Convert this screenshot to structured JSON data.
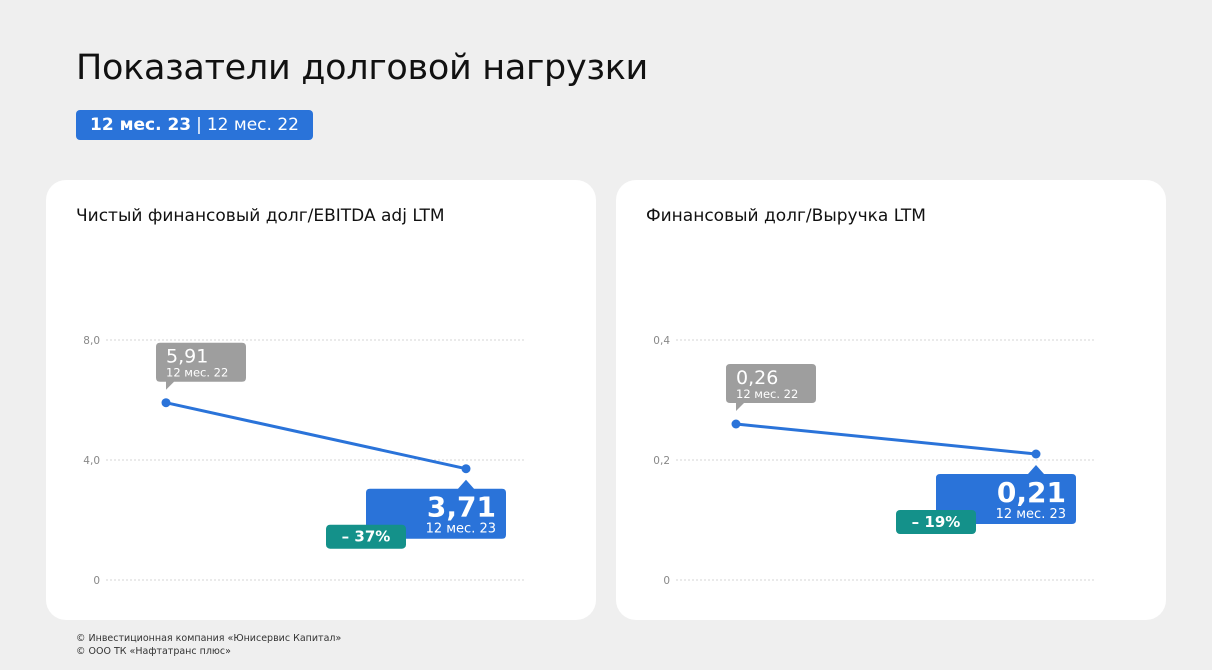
{
  "header": {
    "title": "Показатели долговой нагрузки",
    "period_current": "12 мес. 23",
    "period_separator": "|",
    "period_previous": "12 мес. 22"
  },
  "footer": {
    "line1": "© Инвестиционная компания «Юнисервис Капитал»",
    "line2": "© ООО ТК «Нафтатранс плюс»"
  },
  "colors": {
    "accent_blue": "#2a73d9",
    "previous_gray": "#9e9e9e",
    "change_teal": "#14918a"
  },
  "chart_data": [
    {
      "type": "line",
      "title": "Чистый финансовый долг/EBITDA adj LTM",
      "ylim": [
        0,
        8
      ],
      "yticks": [
        "0",
        "4,0",
        "8,0"
      ],
      "ytick_values": [
        0,
        4,
        8
      ],
      "grid": true,
      "points": [
        {
          "value": 5.91,
          "label": "5,91",
          "period": "12 мес. 22",
          "style": "previous"
        },
        {
          "value": 3.71,
          "label": "3,71",
          "period": "12 мес. 23",
          "style": "current"
        }
      ],
      "change": "– 37%"
    },
    {
      "type": "line",
      "title": "Финансовый долг/Выручка LTM",
      "ylim": [
        0,
        0.4
      ],
      "yticks": [
        "0",
        "0,2",
        "0,4"
      ],
      "ytick_values": [
        0,
        0.2,
        0.4
      ],
      "grid": true,
      "points": [
        {
          "value": 0.26,
          "label": "0,26",
          "period": "12 мес. 22",
          "style": "previous"
        },
        {
          "value": 0.21,
          "label": "0,21",
          "period": "12 мес. 23",
          "style": "current"
        }
      ],
      "change": "– 19%"
    }
  ]
}
